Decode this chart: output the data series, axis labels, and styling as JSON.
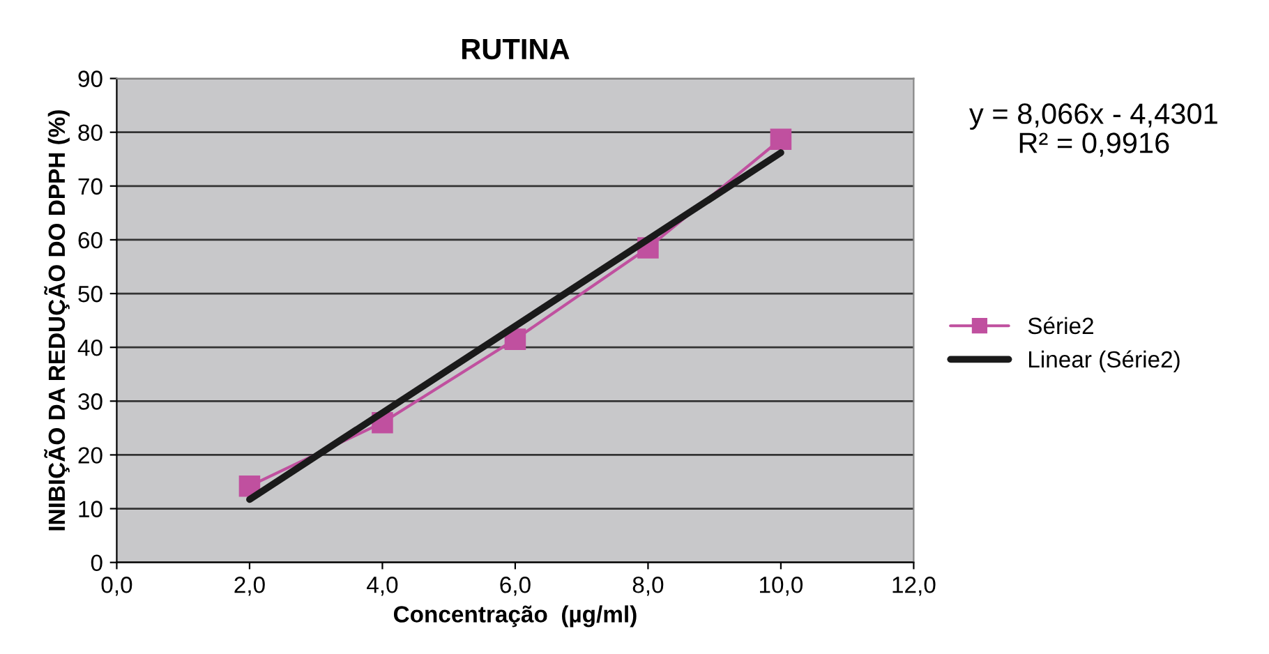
{
  "chart_data": {
    "type": "line",
    "title": "RUTINA",
    "xlabel": "Concentração  (µg/ml)",
    "ylabel": "INIBIÇÃO DA REDUÇÃO DO DPPH (%)",
    "series": [
      {
        "name": "Série2",
        "color": "#c0509f",
        "x": [
          2,
          4,
          6,
          8,
          10
        ],
        "values": [
          14.2,
          26.0,
          41.5,
          58.5,
          78.7
        ],
        "marker": "square"
      },
      {
        "name": "Linear (Série2)",
        "color": "#1a1a1a",
        "x": [
          2,
          10
        ],
        "values": [
          11.7,
          76.2
        ],
        "marker": "none"
      }
    ],
    "annotations": [
      "y = 8,066x - 4,4301\nR² = 0,9916"
    ],
    "xlim": [
      0,
      12
    ],
    "xticks": [
      {
        "value": 0,
        "label": "0,0"
      },
      {
        "value": 2,
        "label": "2,0"
      },
      {
        "value": 4,
        "label": "4,0"
      },
      {
        "value": 6,
        "label": "6,0"
      },
      {
        "value": 8,
        "label": "8,0"
      },
      {
        "value": 10,
        "label": "10,0"
      },
      {
        "value": 12,
        "label": "12,0"
      }
    ],
    "ylim": [
      0,
      90
    ],
    "yticks": [
      0,
      10,
      20,
      30,
      40,
      50,
      60,
      70,
      80,
      90
    ],
    "grid": "y",
    "legend": "right",
    "line_style": "solid"
  }
}
